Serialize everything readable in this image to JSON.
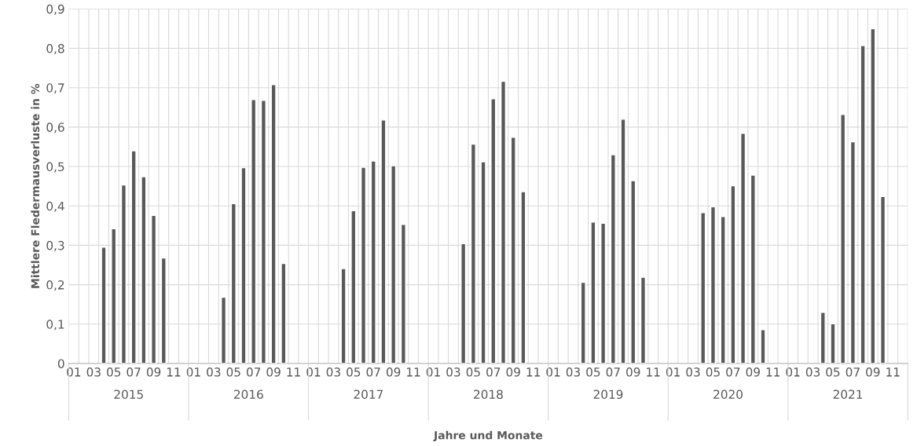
{
  "chart_data": {
    "type": "bar",
    "xlabel": "Jahre und Monate",
    "ylabel": "Mittlere Fledermausverluste in %",
    "categories": [
      "01",
      null,
      "03",
      null,
      "05",
      null,
      "07",
      null,
      "09",
      null,
      "11",
      null,
      "01",
      null,
      "03",
      null,
      "05",
      null,
      "07",
      null,
      "09",
      null,
      "11",
      null,
      "01",
      null,
      "03",
      null,
      "05",
      null,
      "07",
      null,
      "09",
      null,
      "11",
      null,
      "01",
      null,
      "03",
      null,
      "05",
      null,
      "07",
      null,
      "09",
      null,
      "11",
      null,
      "01",
      null,
      "03",
      null,
      "05",
      null,
      "07",
      null,
      "09",
      null,
      "11",
      null,
      "01",
      null,
      "03",
      null,
      "05",
      null,
      "07",
      null,
      "09",
      null,
      "11",
      null,
      "01",
      null,
      "03",
      null,
      "05",
      null,
      "07",
      null,
      "09",
      null,
      "11",
      null
    ],
    "values": [
      null,
      null,
      null,
      0.295,
      0.342,
      0.453,
      0.54,
      0.474,
      0.376,
      0.268,
      null,
      null,
      null,
      null,
      null,
      0.168,
      0.406,
      0.497,
      0.67,
      0.668,
      0.708,
      0.254,
      null,
      null,
      null,
      null,
      null,
      0.241,
      0.388,
      0.498,
      0.514,
      0.618,
      0.502,
      0.353,
      null,
      null,
      null,
      null,
      null,
      0.304,
      0.557,
      0.512,
      0.672,
      0.716,
      0.574,
      0.436,
      null,
      null,
      null,
      null,
      null,
      0.206,
      0.359,
      0.356,
      0.53,
      0.62,
      0.464,
      0.219,
      null,
      null,
      null,
      null,
      null,
      0.383,
      0.398,
      0.373,
      0.451,
      0.584,
      0.478,
      0.086,
      null,
      null,
      null,
      null,
      null,
      0.13,
      0.101,
      0.632,
      0.563,
      0.807,
      0.85,
      0.424,
      null,
      null
    ],
    "color": "#595959",
    "annotations": [
      "2015",
      "2016",
      "2017",
      "2018",
      "2019",
      "2020",
      "2021"
    ],
    "ylim": [
      0,
      0.9
    ],
    "yticks": [
      0,
      {
        "value": 0.1,
        "label": "0,1"
      },
      {
        "value": 0.2,
        "label": "0,2"
      },
      {
        "value": 0.3,
        "label": "0,3"
      },
      {
        "value": 0.4,
        "label": "0,4"
      },
      {
        "value": 0.5,
        "label": "0,5"
      },
      {
        "value": 0.6,
        "label": "0,6"
      },
      {
        "value": 0.7,
        "label": "0,7"
      },
      {
        "value": 0.8,
        "label": "0,8"
      },
      {
        "value": 0.9,
        "label": "0,9"
      }
    ],
    "grid": true
  }
}
